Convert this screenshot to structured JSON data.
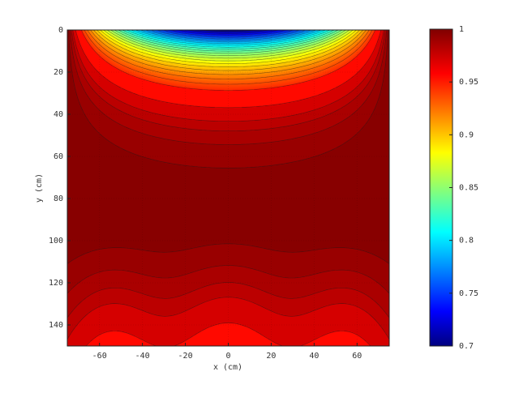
{
  "chart_data": {
    "type": "heatmap",
    "title": "",
    "xlabel": "x (cm)",
    "ylabel": "y (cm)",
    "xlim": [
      -75,
      75
    ],
    "ylim": [
      150,
      0
    ],
    "y_axis_direction": "down",
    "grid": true,
    "x_ticks": [
      "-60",
      "-40",
      "-20",
      "0",
      "20",
      "40",
      "60"
    ],
    "y_ticks": [
      "0",
      "20",
      "40",
      "60",
      "80",
      "100",
      "120",
      "140"
    ],
    "colorbar": {
      "min": 0.7,
      "max": 1,
      "colormap": "jet",
      "position": "right",
      "ticks": [
        "0.7",
        "0.75",
        "0.8",
        "0.85",
        "0.9",
        "0.95",
        "1"
      ]
    },
    "contour_levels": [
      0.7,
      0.8,
      0.9,
      0.95,
      0.97,
      0.98,
      0.985,
      0.99,
      0.995,
      1.0
    ],
    "field_description_values": {
      "min_value": 0.7,
      "min_location": {
        "x": 0,
        "y": 0
      },
      "max_value": 1.0,
      "bottom_center_value": 0.965
    }
  }
}
